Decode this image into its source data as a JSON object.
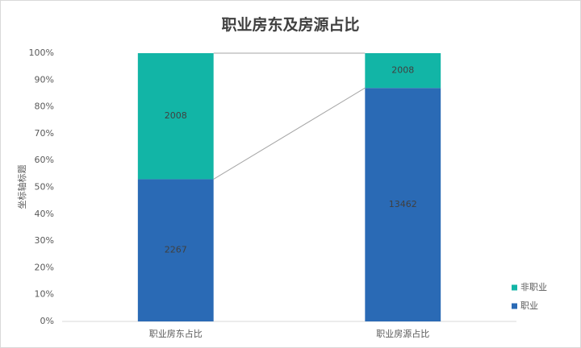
{
  "chart_data": {
    "type": "stacked_percent_bar",
    "title": "职业房东及房源占比",
    "y_label": "坐标轴标题",
    "categories": [
      "职业房东占比",
      "职业房源占比"
    ],
    "series": [
      {
        "name": "职业",
        "color": "#2a6ab5",
        "values": [
          2267,
          13462
        ]
      },
      {
        "name": "非职业",
        "color": "#12b5a6",
        "values": [
          2008,
          2008
        ]
      }
    ],
    "ylim": [
      0,
      100
    ],
    "yticks": [
      {
        "value": 0,
        "label": "0%"
      },
      {
        "value": 10,
        "label": "10%"
      },
      {
        "value": 20,
        "label": "20%"
      },
      {
        "value": 30,
        "label": "30%"
      },
      {
        "value": 40,
        "label": "40%"
      },
      {
        "value": 50,
        "label": "50%"
      },
      {
        "value": 60,
        "label": "60%"
      },
      {
        "value": 70,
        "label": "70%"
      },
      {
        "value": 80,
        "label": "80%"
      },
      {
        "value": 90,
        "label": "90%"
      },
      {
        "value": 100,
        "label": "100%"
      }
    ],
    "legend": "right"
  }
}
